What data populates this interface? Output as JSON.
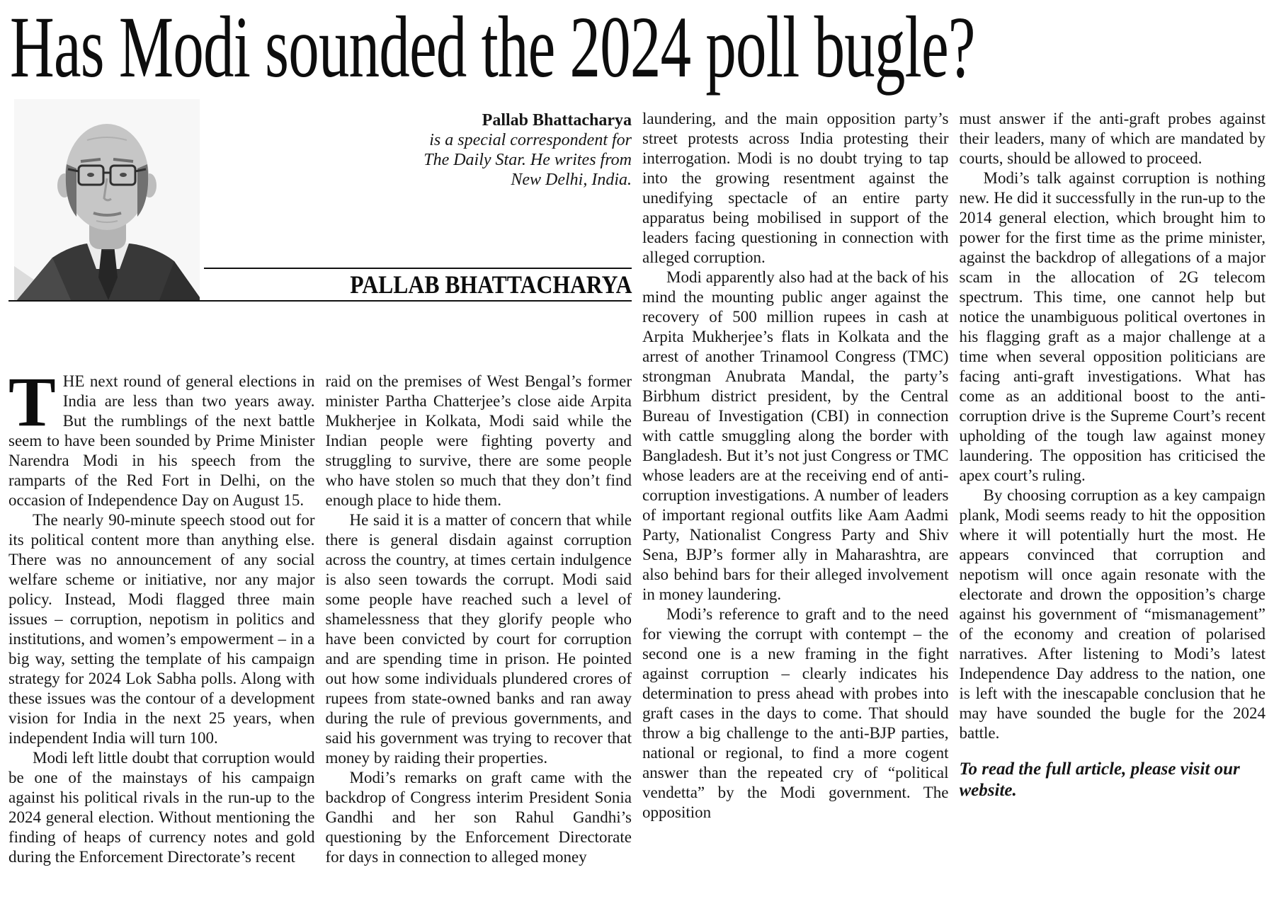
{
  "headline": "Has Modi sounded the 2024 poll bugle?",
  "byline": {
    "name": "Pallab Bhattacharya",
    "role_lines": [
      "is a special correspondent for",
      "The Daily Star. He writes from",
      "New Delhi, India."
    ],
    "banner_name": "PALLAB BHATTACHARYA"
  },
  "colors": {
    "text": "#161616",
    "rule": "#111111",
    "background": "#ffffff"
  },
  "article": {
    "drop_cap": "T",
    "columns": [
      {
        "paragraphs": [
          {
            "drop_cap": true,
            "indent": false,
            "style": "normal",
            "text": "HE next round of general elections in India are less than two years away. But the rumblings of the next battle seem to have been sounded by Prime Minister Narendra Modi in his speech from the ramparts of the Red Fort in Delhi, on the occasion of Independence Day on August 15."
          },
          {
            "drop_cap": false,
            "indent": true,
            "style": "normal",
            "text": "The nearly 90-minute speech stood out for its political content more than anything else. There was no announcement of any social welfare scheme or initiative, nor any major policy. Instead, Modi flagged three main issues – corruption, nepotism in politics and institutions, and women’s empowerment – in a big way, setting the template of his campaign strategy for 2024 Lok Sabha polls. Along with these issues was the contour of a development vision for India in the next 25 years, when independent India will turn 100."
          },
          {
            "drop_cap": false,
            "indent": true,
            "style": "normal",
            "text": "Modi left little doubt that corruption would be one of the mainstays of his campaign against his political rivals in the run-up to the 2024 general election. Without mentioning the finding of heaps of currency notes and gold during the Enforcement Directorate’s recent"
          }
        ]
      },
      {
        "paragraphs": [
          {
            "drop_cap": false,
            "indent": false,
            "style": "normal",
            "text": "raid on the premises of West Bengal’s former minister Partha Chatterjee’s close aide Arpita Mukherjee in Kolkata, Modi said while the Indian people were fighting poverty and struggling to survive, there are some people who have stolen so much that they don’t find enough place to hide them."
          },
          {
            "drop_cap": false,
            "indent": true,
            "style": "normal",
            "text": "He said it is a matter of concern that while there is general disdain against corruption across the country, at times certain indulgence is also seen towards the corrupt. Modi said some people have reached such a level of shamelessness that they glorify people who have been convicted by court for corruption and are spending time in prison. He pointed out how some individuals plundered crores of rupees from state-owned banks and ran away during the rule of previous governments, and said his government was trying to recover that money by raiding their properties."
          },
          {
            "drop_cap": false,
            "indent": true,
            "style": "normal",
            "text": "Modi’s remarks on graft came with the backdrop of Congress interim President Sonia Gandhi and her son Rahul Gandhi’s questioning by the Enforcement Directorate for days in connection to alleged money"
          }
        ]
      },
      {
        "paragraphs": [
          {
            "drop_cap": false,
            "indent": false,
            "style": "normal",
            "text": "laundering, and the main opposition party’s street protests across India protesting their interrogation. Modi is no doubt trying to tap into the growing resentment against the unedifying spectacle of an entire party apparatus being mobilised in support of the leaders facing questioning in connection with alleged corruption."
          },
          {
            "drop_cap": false,
            "indent": true,
            "style": "normal",
            "text": "Modi apparently also had at the back of his mind the mounting public anger against the recovery of 500 million rupees in cash at Arpita Mukherjee’s flats in Kolkata and the arrest of another Trinamool Congress (TMC) strongman Anubrata Mandal, the party’s Birbhum district president, by the Central Bureau of Investigation (CBI) in connection with cattle smuggling along the border with Bangladesh. But it’s not just Congress or TMC whose leaders are at the receiving end of anti-corruption investigations. A number of leaders of important regional outfits like Aam Aadmi Party, Nationalist Congress Party and Shiv Sena, BJP’s former ally in Maharashtra, are also behind bars for their alleged involvement in money laundering."
          },
          {
            "drop_cap": false,
            "indent": true,
            "style": "normal",
            "text": "Modi’s reference to graft and to the need for viewing the corrupt with contempt – the second one is a new framing in the fight against corruption – clearly indicates his determination to press ahead with probes into graft cases in the days to come. That should throw a big challenge to the anti-BJP parties, national or regional, to find a more cogent answer than the repeated cry of “political vendetta” by the Modi government. The opposition"
          }
        ]
      },
      {
        "paragraphs": [
          {
            "drop_cap": false,
            "indent": false,
            "style": "normal",
            "text": "must answer if the anti-graft probes against their leaders, many of which are mandated by courts, should be allowed to proceed."
          },
          {
            "drop_cap": false,
            "indent": true,
            "style": "normal",
            "text": "Modi’s talk against corruption is nothing new. He did it successfully in the run-up to the 2014 general election, which brought him to power for the first time as the prime minister, against the backdrop of allegations of a major scam in the allocation of 2G telecom spectrum. This time, one cannot help but notice the unambiguous political overtones in his flagging graft as a major challenge at a time when several opposition politicians are facing anti-graft investigations. What has come as an additional boost to the anti-corruption drive is the Supreme Court’s recent upholding of the tough law against money laundering. The opposition has criticised the apex court’s ruling."
          },
          {
            "drop_cap": false,
            "indent": true,
            "style": "normal",
            "text": "By choosing corruption as a key campaign plank, Modi seems ready to hit the opposition where it will potentially hurt the most. He appears convinced that corruption and nepotism will once again resonate with the electorate and drown the opposition’s charge against his government of “mismanagement” of the economy and creation of polarised narratives. After listening to Modi’s latest Independence Day address to the nation, one is left with the inescapable conclusion that he may have sounded the bugle for the 2024 battle."
          },
          {
            "drop_cap": false,
            "indent": false,
            "style": "outro",
            "text": "To read the full article, please visit our website."
          }
        ]
      }
    ]
  }
}
